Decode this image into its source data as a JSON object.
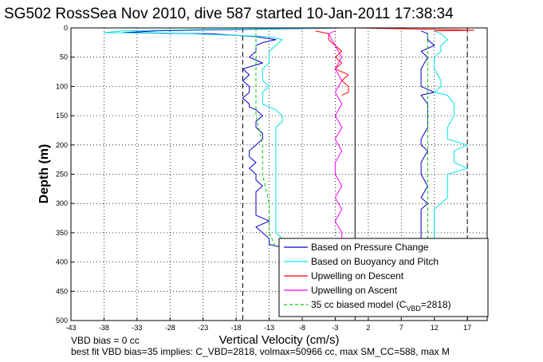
{
  "chart_data": {
    "type": "line",
    "title": "SG502 RossSea Nov 2010, dive 587 started 10-Jan-2011 17:38:34",
    "xlabel": "Vertical Velocity (cm/s)",
    "ylabel": "Depth (m)",
    "xlim": [
      -43,
      20
    ],
    "ylim": [
      500,
      0
    ],
    "y_reversed": true,
    "grid": true,
    "x_ticks": [
      -43,
      -38,
      -33,
      -28,
      -23,
      -18,
      -13,
      -8,
      -3,
      2,
      7,
      12,
      17
    ],
    "x_tick_labels": [
      "-43",
      "-38",
      "-33",
      "-28",
      "-23",
      "-18",
      "-13",
      "-8",
      "-3",
      "2",
      "7",
      "12",
      "17"
    ],
    "y_ticks": [
      0,
      50,
      100,
      150,
      200,
      250,
      300,
      350,
      400,
      450,
      500
    ],
    "y_tick_labels": [
      "0",
      "50",
      "100",
      "150",
      "200",
      "250",
      "300",
      "350",
      "400",
      "450",
      "500"
    ],
    "legend_position": "bottom-right",
    "legend_labels": [
      "Based on Pressure Change",
      "Based on Buoyancy and Pitch",
      "Upwelling on Descent",
      "Upwelling on Ascent",
      "35 cc biased model (C",
      "VBD",
      "=2818)"
    ],
    "reference_lines": {
      "black_dashed": [
        -17,
        17
      ],
      "black_solid": 0
    },
    "colors": {
      "pressure_change": "#0000cc",
      "buoyancy_pitch": "#00e6e6",
      "upwelling_descent": "#ff0000",
      "upwelling_ascent": "#ff00ff",
      "biased_model": "#00cc00",
      "grid": "#000000"
    },
    "series": [
      {
        "name": "Based on Pressure Change",
        "key": "pressure_descent",
        "color": "#0000cc",
        "style": "solid",
        "depth": [
          0,
          3,
          5,
          8,
          10,
          15,
          20,
          25,
          30,
          40,
          50,
          60,
          70,
          80,
          90,
          100,
          110,
          120,
          130,
          135,
          140,
          150,
          160,
          170,
          180,
          190,
          200,
          210,
          220,
          230,
          240,
          250,
          260,
          270,
          280,
          290,
          300,
          310,
          320,
          330,
          340,
          350,
          360,
          370,
          375
        ],
        "velocity": [
          -2,
          -20,
          -30,
          -35,
          -22,
          -15,
          -12,
          -14,
          -15,
          -15,
          -16,
          -14,
          -17,
          -16,
          -17,
          -16,
          -16,
          -17,
          -16,
          -16,
          -15,
          -14,
          -15,
          -15,
          -14,
          -14,
          -15,
          -16,
          -16,
          -15,
          -16,
          -15,
          -15,
          -14,
          -15,
          -15,
          -15,
          -15,
          -15,
          -13,
          -15,
          -14,
          -13,
          -13,
          -11
        ]
      },
      {
        "name": "Based on Buoyancy and Pitch",
        "key": "buoyancy_descent",
        "color": "#00e6e6",
        "style": "solid",
        "depth": [
          0,
          3,
          5,
          8,
          10,
          15,
          20,
          30,
          40,
          50,
          60,
          70,
          80,
          90,
          100,
          110,
          120,
          130,
          140,
          150,
          160,
          170,
          180,
          190,
          200,
          210,
          220,
          230,
          240,
          250,
          260,
          270,
          280,
          290,
          300,
          310,
          320,
          330,
          340,
          350,
          360,
          370,
          375
        ],
        "velocity": [
          -2,
          -25,
          -35,
          -38,
          -25,
          -13,
          -11,
          -12,
          -13,
          -13,
          -13,
          -14,
          -14,
          -14,
          -13,
          -14,
          -14,
          -14,
          -12,
          -11,
          -11,
          -12,
          -12,
          -12,
          -12,
          -12,
          -12,
          -12,
          -12,
          -12,
          -12,
          -12,
          -12,
          -12,
          -12,
          -12,
          -12,
          -12,
          -12,
          -12,
          -11,
          -11,
          -11
        ]
      },
      {
        "name": "35 cc biased model (CVBD=2818)",
        "key": "model_descent",
        "color": "#00cc00",
        "style": "dashed",
        "depth": [
          0,
          10,
          20,
          50,
          100,
          150,
          200,
          250,
          300,
          350,
          375
        ],
        "velocity": [
          -15,
          -15,
          -15,
          -15,
          -15,
          -15,
          -14,
          -14,
          -13,
          -13,
          -12
        ]
      },
      {
        "name": "Upwelling on Descent",
        "key": "upwelling_descent",
        "color": "#ff0000",
        "style": "solid",
        "depth": [
          5,
          10,
          20,
          30,
          40,
          50,
          60,
          70,
          80,
          90,
          100,
          110,
          115
        ],
        "velocity": [
          -6,
          -4,
          -4,
          -3,
          -2,
          -3,
          -2,
          -3,
          -1,
          -2,
          -1,
          -1,
          -2
        ]
      },
      {
        "name": "Upwelling on Ascent",
        "key": "upwelling_ascent",
        "color": "#ff00ff",
        "style": "solid",
        "depth": [
          5,
          10,
          30,
          50,
          70,
          90,
          110,
          130,
          150,
          170,
          190,
          210,
          230,
          250,
          270,
          290,
          310,
          330,
          350,
          360
        ],
        "velocity": [
          -3,
          -4,
          -3,
          -2,
          -3,
          -2,
          -3,
          -2,
          -3,
          -2,
          -3,
          -2,
          -3,
          -3,
          -2,
          -3,
          -2,
          -3,
          -2,
          -2
        ]
      },
      {
        "name": "Based on Pressure Change",
        "key": "pressure_ascent",
        "color": "#0000cc",
        "style": "solid",
        "depth": [
          360,
          350,
          330,
          310,
          300,
          290,
          270,
          250,
          230,
          210,
          200,
          190,
          170,
          150,
          130,
          115,
          110,
          100,
          90,
          70,
          50,
          40,
          30,
          20,
          10,
          5
        ],
        "velocity": [
          10,
          10,
          10,
          10,
          11,
          10,
          11,
          10,
          10,
          11,
          10,
          10,
          11,
          11,
          11,
          10,
          12,
          10,
          10,
          10,
          11,
          10,
          12,
          11,
          11,
          10
        ]
      },
      {
        "name": "Based on Buoyancy and Pitch",
        "key": "buoyancy_ascent",
        "color": "#00e6e6",
        "style": "solid",
        "depth": [
          360,
          350,
          330,
          310,
          300,
          290,
          270,
          250,
          240,
          230,
          210,
          200,
          190,
          170,
          150,
          130,
          115,
          110,
          100,
          90,
          70,
          50,
          40,
          30,
          20,
          10,
          5
        ],
        "velocity": [
          12,
          12,
          12,
          12,
          13,
          14,
          14,
          14,
          17,
          15,
          15,
          17,
          14,
          14,
          15,
          15,
          14,
          12,
          13,
          13,
          12,
          12,
          13,
          13,
          14,
          13,
          12
        ]
      },
      {
        "name": "35 cc biased model (CVBD=2818)",
        "key": "model_ascent",
        "color": "#00cc00",
        "style": "dashed",
        "depth": [
          360,
          300,
          200,
          100,
          50,
          10
        ],
        "velocity": [
          11,
          11,
          11,
          11,
          11,
          11
        ]
      },
      {
        "name": "Upwelling on Descent",
        "key": "surface_spike",
        "color": "#ff0000",
        "style": "solid",
        "depth": [
          0,
          1,
          2,
          3,
          4,
          5
        ],
        "velocity": [
          0,
          5,
          10,
          15,
          18,
          12
        ]
      }
    ]
  },
  "annotations": {
    "bias_line": "VBD bias = 0 cc",
    "fit_line": "best fit VBD bias=35 implies: C_VBD=2818, volmax=50966 cc, max SM_CC=588, max M"
  }
}
